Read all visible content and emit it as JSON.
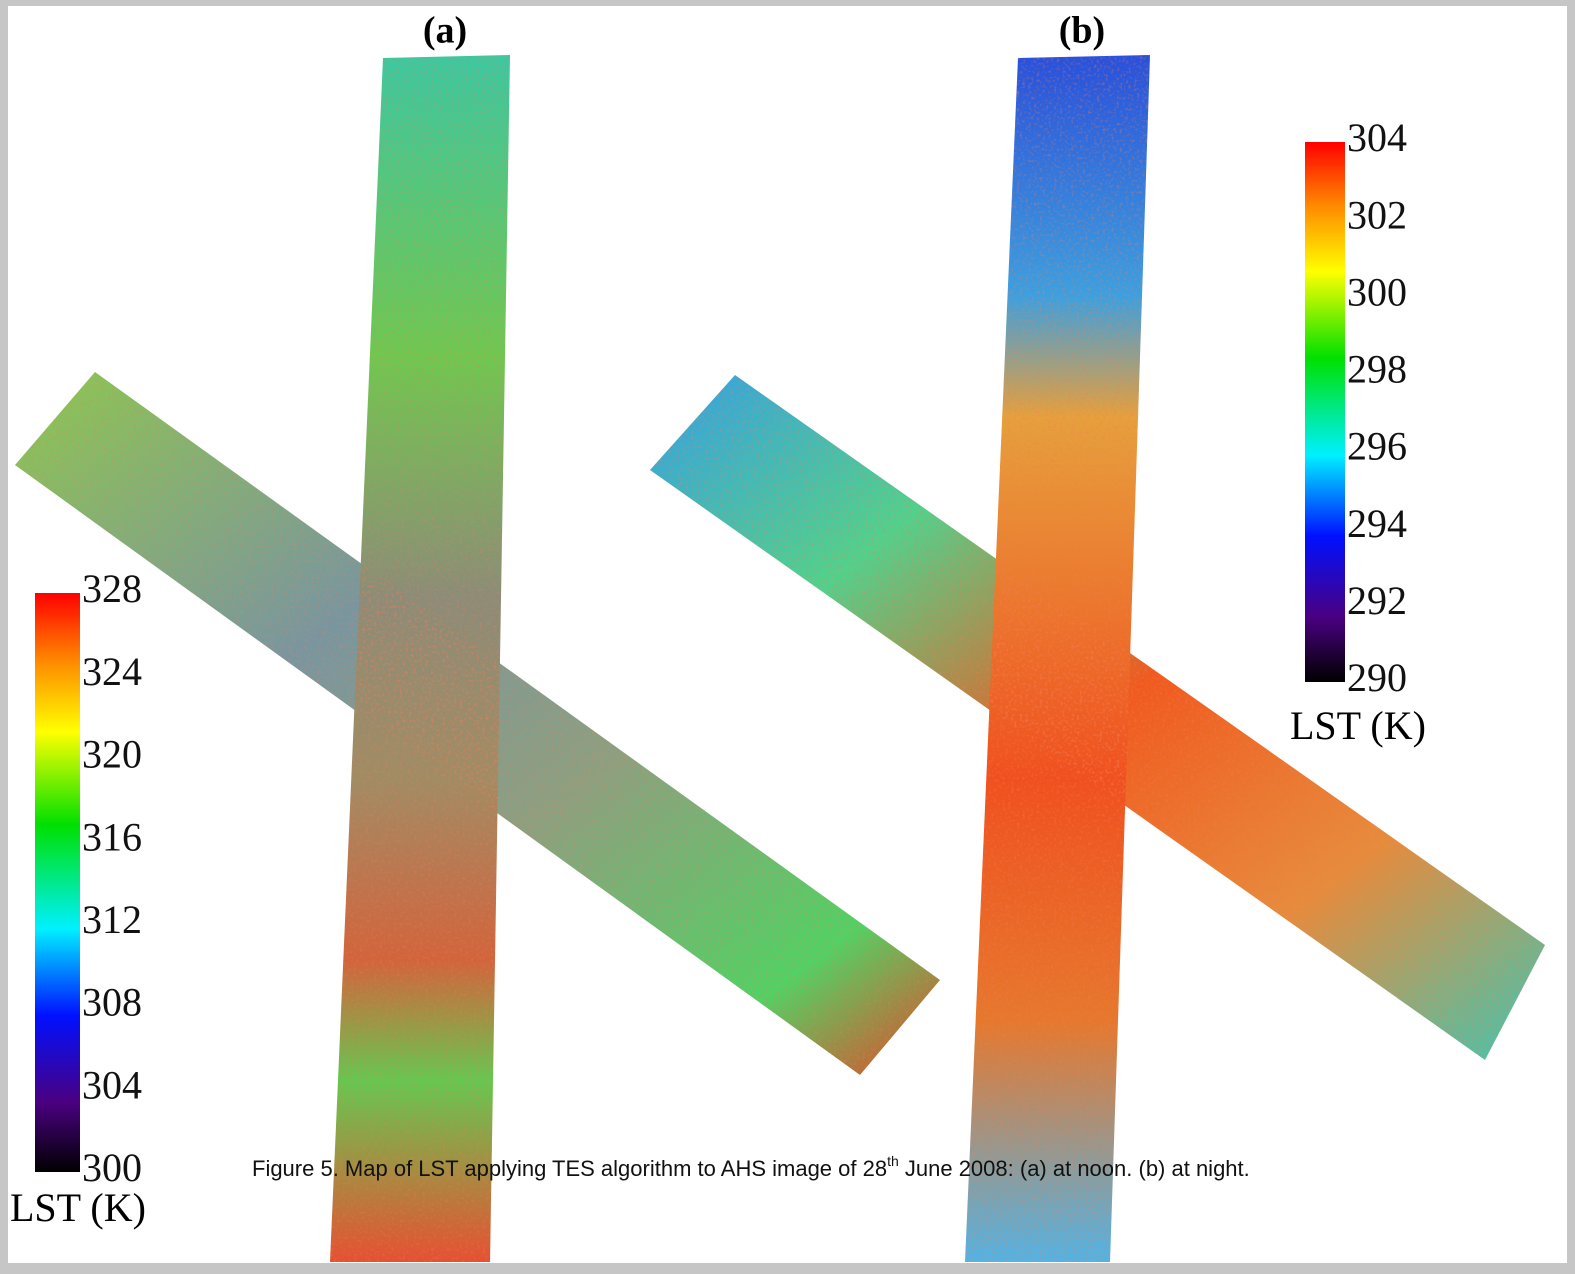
{
  "panels": [
    {
      "label": "(a)",
      "colorbar": {
        "ticks": [
          300,
          304,
          308,
          312,
          316,
          320,
          324,
          328
        ],
        "label": "LST (K)"
      }
    },
    {
      "label": "(b)",
      "colorbar": {
        "ticks": [
          290,
          292,
          294,
          296,
          298,
          300,
          302,
          304
        ],
        "label": "LST (K)"
      }
    }
  ],
  "caption": {
    "parts": [
      "Figure 5. Map of LST applying TES algorithm to AHS image of 28",
      "th",
      " June 2008: (a) at noon. (b) at night."
    ]
  }
}
